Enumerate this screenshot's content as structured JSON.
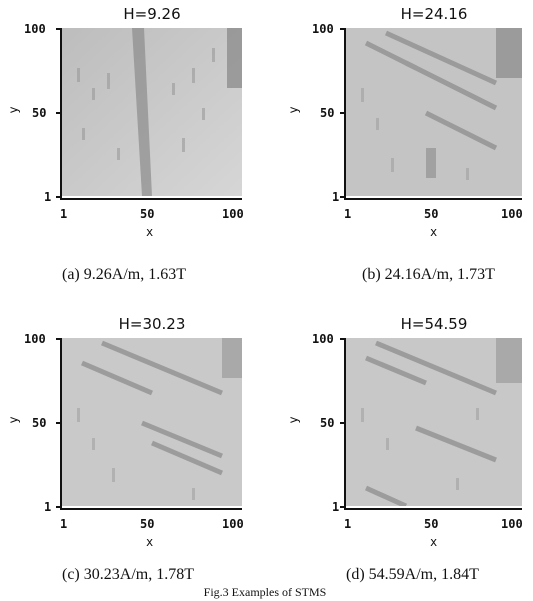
{
  "figure_caption": "Fig.3 Examples of STMS",
  "panels": [
    {
      "title": "H=9.26",
      "caption": "(a) 9.26A/m, 1.63T",
      "y_label": "y",
      "x_label": "x",
      "y_ticks": [
        "100",
        "50",
        "1"
      ],
      "x_ticks": [
        "1",
        "50",
        "100"
      ]
    },
    {
      "title": "H=24.16",
      "caption": "(b) 24.16A/m, 1.73T",
      "y_label": "y",
      "x_label": "x",
      "y_ticks": [
        "100",
        "50",
        "1"
      ],
      "x_ticks": [
        "1",
        "50",
        "100"
      ]
    },
    {
      "title": "H=30.23",
      "caption": "(c) 30.23A/m, 1.78T",
      "y_label": "y",
      "x_label": "x",
      "y_ticks": [
        "100",
        "50",
        "1"
      ],
      "x_ticks": [
        "1",
        "50",
        "100"
      ]
    },
    {
      "title": "H=54.59",
      "caption": "(d) 54.59A/m, 1.84T",
      "y_label": "y",
      "x_label": "x",
      "y_ticks": [
        "100",
        "50",
        "1"
      ],
      "x_ticks": [
        "1",
        "50",
        "100"
      ]
    }
  ],
  "colors": {
    "image_background": "#c8c8c8",
    "domain_dark": "#8c8c8c",
    "axis": "#111111"
  }
}
